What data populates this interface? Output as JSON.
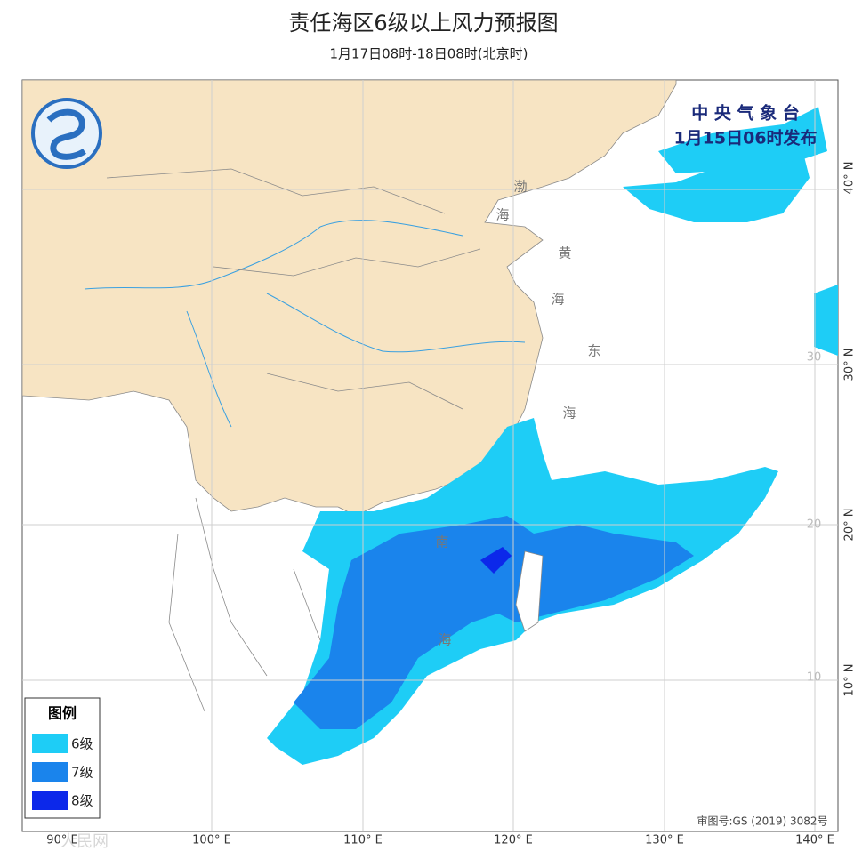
{
  "header": {
    "title": "责任海区6级以上风力预报图",
    "subtitle": "1月17日08时-18日08时(北京时)"
  },
  "issuer": {
    "name": "中 央 气 象 台",
    "issued": "1月15日06时发布"
  },
  "map": {
    "longitude_labels": [
      "90° E",
      "100° E",
      "110° E",
      "120° E",
      "130° E",
      "140° E"
    ],
    "latitude_labels": [
      "40° N",
      "30° N",
      "20° N",
      "10° N"
    ],
    "inner_latitude_labels": [
      "30",
      "20",
      "10"
    ],
    "sea_labels": [
      "渤",
      "海",
      "黄",
      "海",
      "东",
      "海",
      "南",
      "海"
    ],
    "legend": {
      "title": "图例",
      "items": [
        {
          "label": "6级",
          "color": "#1ecdf6"
        },
        {
          "label": "7级",
          "color": "#1a84ec"
        },
        {
          "label": "8级",
          "color": "#0c28ea"
        }
      ]
    },
    "approval": "审图号:GS (2019) 3082号"
  },
  "watermark": "人民网"
}
